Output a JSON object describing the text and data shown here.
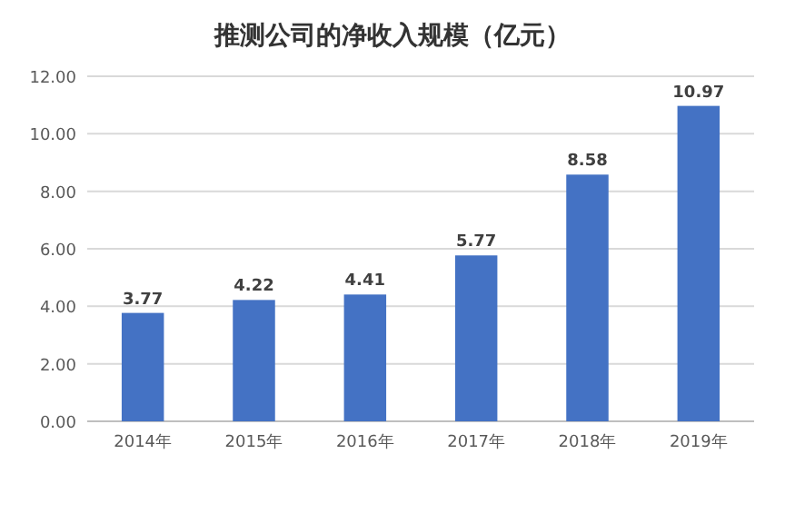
{
  "chart_data": {
    "type": "bar",
    "title": "推测公司的净收入规模（亿元）",
    "categories": [
      "2014年",
      "2015年",
      "2016年",
      "2017年",
      "2018年",
      "2019年"
    ],
    "values": [
      3.77,
      4.22,
      4.41,
      5.77,
      8.58,
      10.97
    ],
    "color": "#4472c4",
    "ylim": [
      0,
      12
    ],
    "yticks": [
      {
        "value": 0,
        "label": "0.00"
      },
      {
        "value": 2,
        "label": "2.00"
      },
      {
        "value": 4,
        "label": "4.00"
      },
      {
        "value": 6,
        "label": "6.00"
      },
      {
        "value": 8,
        "label": "8.00"
      },
      {
        "value": 10,
        "label": "10.00"
      },
      {
        "value": 12,
        "label": "12.00"
      }
    ],
    "grid": "y",
    "data_labels": true
  }
}
